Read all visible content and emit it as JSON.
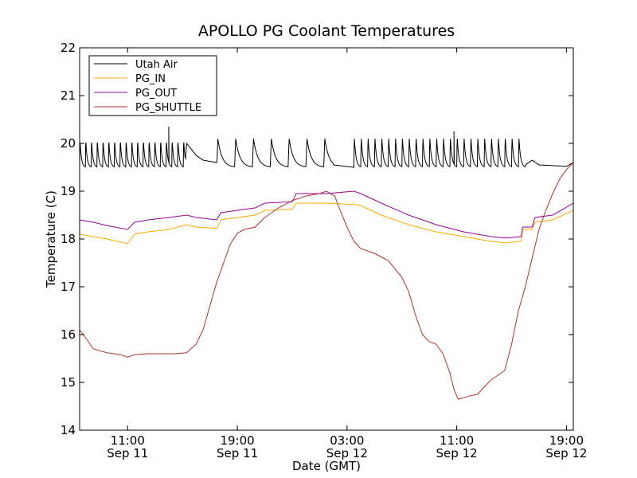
{
  "chart_data": {
    "type": "line",
    "title": "APOLLO PG Coolant Temperatures",
    "xlabel": "Date (GMT)",
    "ylabel": "Temperature (C)",
    "x_units": "hours since Sep 11 07:30 GMT",
    "xlim": [
      0,
      36
    ],
    "ylim": [
      14,
      22
    ],
    "grid": false,
    "legend_position": "upper-left",
    "y_ticks": [
      14,
      15,
      16,
      17,
      18,
      19,
      20,
      21,
      22
    ],
    "x_ticks": [
      {
        "x": 3.5,
        "line1": "11:00",
        "line2": "Sep 11"
      },
      {
        "x": 11.5,
        "line1": "19:00",
        "line2": "Sep 11"
      },
      {
        "x": 19.5,
        "line1": "03:00",
        "line2": "Sep 12"
      },
      {
        "x": 27.5,
        "line1": "11:00",
        "line2": "Sep 12"
      },
      {
        "x": 35.5,
        "line1": "19:00",
        "line2": "Sep 12"
      }
    ],
    "series": [
      {
        "name": "Utah Air",
        "color": "#000000",
        "pattern": "sawtooth",
        "cycle_segments": [
          {
            "x_start": 0.0,
            "x_end": 7.7,
            "period": 0.42,
            "low": 19.5,
            "high": 20.1
          },
          {
            "x_start": 10.0,
            "x_end": 18.5,
            "period": 1.3,
            "low": 19.5,
            "high": 20.1
          },
          {
            "x_start": 20.0,
            "x_end": 32.5,
            "period": 0.5,
            "low": 19.5,
            "high": 20.15
          }
        ],
        "values": [
          [
            0.0,
            19.6
          ],
          [
            7.7,
            19.6
          ],
          [
            7.8,
            20.0
          ],
          [
            8.5,
            19.75
          ],
          [
            9.0,
            19.65
          ],
          [
            10.0,
            19.6
          ],
          [
            18.5,
            19.55
          ],
          [
            20.0,
            19.5
          ],
          [
            32.5,
            19.55
          ],
          [
            33.0,
            19.65
          ],
          [
            33.5,
            19.55
          ],
          [
            35.5,
            19.52
          ],
          [
            36.0,
            19.6
          ]
        ],
        "spikes": [
          [
            6.5,
            20.35
          ],
          [
            27.3,
            20.25
          ]
        ]
      },
      {
        "name": "PG_IN",
        "color": "#ffaa00",
        "values": [
          [
            0.0,
            18.1
          ],
          [
            1.0,
            18.05
          ],
          [
            2.0,
            18.0
          ],
          [
            3.5,
            17.9
          ],
          [
            4.0,
            18.1
          ],
          [
            5.0,
            18.15
          ],
          [
            6.5,
            18.2
          ],
          [
            7.8,
            18.3
          ],
          [
            8.5,
            18.25
          ],
          [
            10.0,
            18.22
          ],
          [
            10.3,
            18.4
          ],
          [
            11.5,
            18.45
          ],
          [
            12.8,
            18.5
          ],
          [
            13.5,
            18.6
          ],
          [
            15.5,
            18.62
          ],
          [
            15.8,
            18.75
          ],
          [
            18.0,
            18.75
          ],
          [
            20.0,
            18.72
          ],
          [
            20.5,
            18.7
          ],
          [
            22.0,
            18.5
          ],
          [
            24.0,
            18.3
          ],
          [
            26.0,
            18.15
          ],
          [
            28.0,
            18.05
          ],
          [
            30.0,
            17.95
          ],
          [
            31.0,
            17.92
          ],
          [
            32.2,
            17.95
          ],
          [
            32.3,
            18.2
          ],
          [
            33.0,
            18.2
          ],
          [
            33.2,
            18.35
          ],
          [
            34.5,
            18.4
          ],
          [
            36.0,
            18.6
          ]
        ]
      },
      {
        "name": "PG_OUT",
        "color": "#990099",
        "values": [
          [
            0.0,
            18.4
          ],
          [
            1.0,
            18.35
          ],
          [
            2.0,
            18.28
          ],
          [
            3.5,
            18.2
          ],
          [
            4.0,
            18.35
          ],
          [
            5.0,
            18.4
          ],
          [
            6.5,
            18.45
          ],
          [
            7.8,
            18.5
          ],
          [
            8.5,
            18.45
          ],
          [
            10.0,
            18.4
          ],
          [
            10.3,
            18.55
          ],
          [
            11.5,
            18.6
          ],
          [
            12.8,
            18.65
          ],
          [
            13.5,
            18.75
          ],
          [
            15.5,
            18.78
          ],
          [
            15.8,
            18.95
          ],
          [
            18.0,
            18.95
          ],
          [
            20.0,
            19.0
          ],
          [
            20.5,
            18.95
          ],
          [
            22.0,
            18.75
          ],
          [
            24.0,
            18.5
          ],
          [
            26.0,
            18.3
          ],
          [
            28.0,
            18.15
          ],
          [
            30.0,
            18.05
          ],
          [
            31.0,
            18.02
          ],
          [
            32.2,
            18.05
          ],
          [
            32.3,
            18.25
          ],
          [
            33.0,
            18.25
          ],
          [
            33.2,
            18.45
          ],
          [
            34.5,
            18.5
          ],
          [
            36.0,
            18.75
          ]
        ]
      },
      {
        "name": "PG_SHUTTLE",
        "color": "#b03030",
        "values": [
          [
            0.0,
            16.1
          ],
          [
            0.4,
            15.95
          ],
          [
            1.0,
            15.7
          ],
          [
            2.0,
            15.62
          ],
          [
            3.0,
            15.58
          ],
          [
            3.5,
            15.53
          ],
          [
            4.0,
            15.58
          ],
          [
            5.0,
            15.6
          ],
          [
            6.0,
            15.6
          ],
          [
            7.0,
            15.6
          ],
          [
            7.8,
            15.62
          ],
          [
            8.5,
            15.8
          ],
          [
            9.0,
            16.1
          ],
          [
            9.5,
            16.6
          ],
          [
            10.0,
            17.1
          ],
          [
            10.5,
            17.5
          ],
          [
            11.0,
            17.9
          ],
          [
            11.5,
            18.12
          ],
          [
            12.0,
            18.2
          ],
          [
            12.8,
            18.25
          ],
          [
            13.5,
            18.45
          ],
          [
            14.5,
            18.65
          ],
          [
            15.5,
            18.8
          ],
          [
            16.5,
            18.9
          ],
          [
            17.5,
            18.95
          ],
          [
            18.0,
            19.0
          ],
          [
            18.6,
            18.9
          ],
          [
            19.0,
            18.6
          ],
          [
            19.5,
            18.25
          ],
          [
            20.0,
            17.95
          ],
          [
            20.5,
            17.8
          ],
          [
            21.5,
            17.7
          ],
          [
            22.5,
            17.55
          ],
          [
            23.5,
            17.2
          ],
          [
            24.0,
            16.9
          ],
          [
            24.5,
            16.4
          ],
          [
            25.0,
            16.0
          ],
          [
            25.5,
            15.85
          ],
          [
            26.0,
            15.8
          ],
          [
            26.5,
            15.6
          ],
          [
            27.0,
            15.2
          ],
          [
            27.3,
            14.85
          ],
          [
            27.6,
            14.65
          ],
          [
            28.0,
            14.68
          ],
          [
            28.5,
            14.72
          ],
          [
            29.0,
            14.75
          ],
          [
            29.5,
            14.9
          ],
          [
            30.0,
            15.05
          ],
          [
            30.5,
            15.15
          ],
          [
            31.0,
            15.25
          ],
          [
            31.5,
            15.8
          ],
          [
            32.0,
            16.5
          ],
          [
            32.5,
            17.0
          ],
          [
            33.0,
            17.6
          ],
          [
            33.5,
            18.2
          ],
          [
            34.0,
            18.6
          ],
          [
            34.5,
            18.95
          ],
          [
            35.0,
            19.25
          ],
          [
            35.5,
            19.45
          ],
          [
            36.0,
            19.6
          ]
        ]
      }
    ]
  }
}
